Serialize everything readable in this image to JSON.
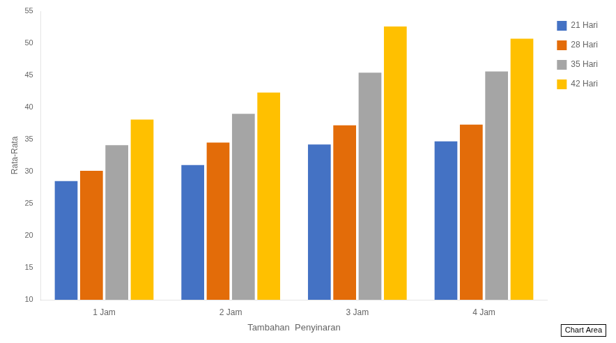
{
  "chart_data": {
    "type": "bar",
    "categories": [
      "1 Jam",
      "2 Jam",
      "3 Jam",
      "4 Jam"
    ],
    "series": [
      {
        "name": "21 Hari",
        "color": "#4472C4",
        "values": [
          28.5,
          31.0,
          34.2,
          34.7
        ]
      },
      {
        "name": "28 Hari",
        "color": "#E36C09",
        "values": [
          30.1,
          34.5,
          37.2,
          37.3
        ]
      },
      {
        "name": "35 Hari",
        "color": "#A5A5A5",
        "values": [
          34.1,
          39.0,
          45.4,
          45.6
        ]
      },
      {
        "name": "42 Hari",
        "color": "#FFC000",
        "values": [
          38.1,
          42.3,
          52.6,
          50.7
        ]
      }
    ],
    "xlabel": "Tambahan  Penyinaran",
    "ylabel": "Rata-Rata",
    "ylim": [
      10,
      55
    ],
    "yticks": [
      10,
      15,
      20,
      25,
      30,
      35,
      40,
      45,
      50,
      55
    ],
    "grid": false,
    "legend": "right",
    "annotations": [
      {
        "text": "Chart Area"
      }
    ]
  }
}
